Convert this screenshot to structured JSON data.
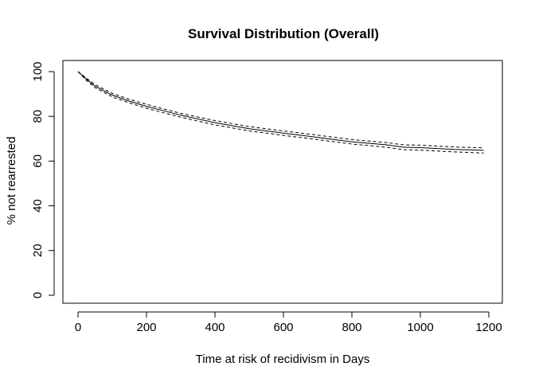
{
  "chart_data": {
    "type": "line",
    "title": "Survival Distribution (Overall)",
    "xlabel": "Time at risk of recidivism in Days",
    "ylabel": "% not rearrested",
    "xlim": [
      0,
      1200
    ],
    "ylim": [
      0,
      100
    ],
    "x_ticks": [
      0,
      200,
      400,
      600,
      800,
      1000,
      1200
    ],
    "y_ticks": [
      0,
      20,
      40,
      60,
      80,
      100
    ],
    "x_tick_labels": [
      "0",
      "200",
      "400",
      "600",
      "800",
      "1000",
      "1200"
    ],
    "y_tick_labels": [
      "0",
      "20",
      "40",
      "60",
      "80",
      "100"
    ],
    "grid": false,
    "series": [
      {
        "style": "solid",
        "x": [
          0,
          25,
          50,
          100,
          150,
          200,
          250,
          300,
          400,
          500,
          600,
          700,
          800,
          900,
          950,
          1000,
          1100,
          1185
        ],
        "values": [
          100,
          96.5,
          93.5,
          89.5,
          86.8,
          84.5,
          82.5,
          80.5,
          77.2,
          74.5,
          72.5,
          70.6,
          68.6,
          67.3,
          66.2,
          66.0,
          65.2,
          64.8
        ]
      },
      {
        "style": "dashed",
        "x": [
          0,
          25,
          50,
          100,
          150,
          200,
          250,
          300,
          400,
          500,
          600,
          700,
          800,
          900,
          950,
          1000,
          1100,
          1185
        ],
        "values": [
          100,
          97.0,
          94.2,
          90.3,
          87.6,
          85.4,
          83.3,
          81.3,
          78.1,
          75.4,
          73.5,
          71.6,
          69.6,
          68.3,
          67.3,
          67.1,
          66.3,
          65.9
        ]
      },
      {
        "style": "dashed",
        "x": [
          0,
          25,
          50,
          100,
          150,
          200,
          250,
          300,
          400,
          500,
          600,
          700,
          800,
          900,
          950,
          1000,
          1100,
          1185
        ],
        "values": [
          100,
          96.0,
          92.8,
          88.7,
          86.0,
          83.6,
          81.6,
          79.6,
          76.2,
          73.5,
          71.5,
          69.6,
          67.6,
          66.2,
          65.1,
          64.9,
          64.1,
          63.6
        ]
      }
    ]
  }
}
